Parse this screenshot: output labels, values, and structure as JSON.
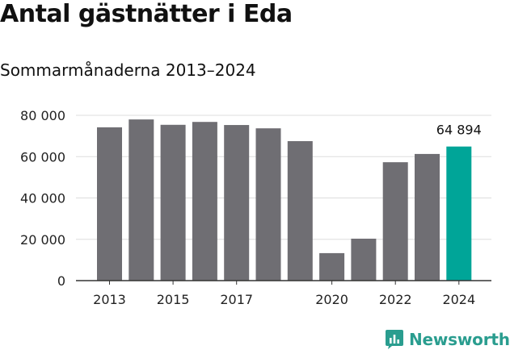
{
  "title": "Antal gästnätter i Eda",
  "subtitle": "Sommarmånaderna 2013–2024",
  "brand": {
    "name": "Newsworthy",
    "color": "#2a9d8f",
    "icon": "chart-bubble-icon"
  },
  "colors": {
    "bar": "#6f6e73",
    "highlight": "#00a598",
    "grid": "#dddddd",
    "axis": "#333333"
  },
  "chart_data": {
    "type": "bar",
    "categories": [
      "2013",
      "2014",
      "2015",
      "2016",
      "2017",
      "2018",
      "2019",
      "2020",
      "2021",
      "2022",
      "2023",
      "2024"
    ],
    "values": [
      74200,
      78000,
      75400,
      76800,
      75300,
      73700,
      67500,
      13300,
      20300,
      57300,
      61300,
      64894
    ],
    "highlight_index": 11,
    "highlight_label": "64 894",
    "x_tick_labels": [
      "2013",
      "2015",
      "2017",
      "2020",
      "2022",
      "2024"
    ],
    "y_ticks": [
      0,
      20000,
      40000,
      60000,
      80000
    ],
    "y_tick_labels": [
      "0",
      "20 000",
      "40 000",
      "60 000",
      "80 000"
    ],
    "ylim": [
      0,
      80000
    ],
    "grid": true,
    "xlabel": "",
    "ylabel": ""
  }
}
